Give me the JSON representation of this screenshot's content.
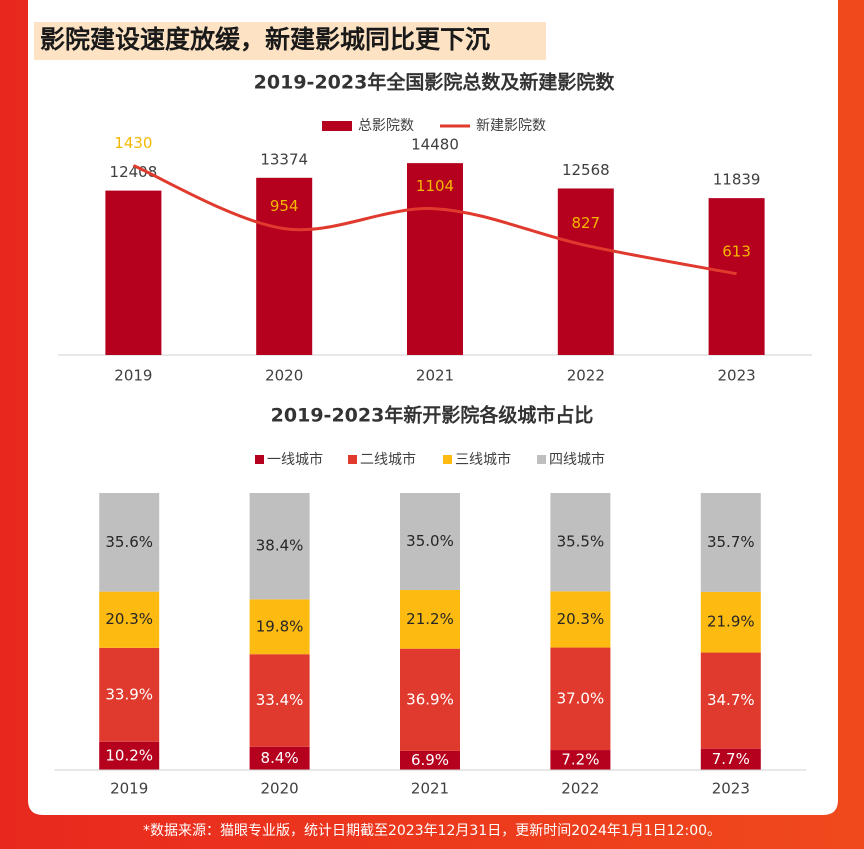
{
  "header": {
    "title": "影院建设速度放缓，新建影城同比更下沉"
  },
  "chart_data": [
    {
      "type": "combo",
      "title": "2019-2023年全国影院总数及新建影院数",
      "categories": [
        "2019",
        "2020",
        "2021",
        "2022",
        "2023"
      ],
      "series": [
        {
          "name": "总影院数",
          "type": "bar",
          "color": "#b5001e",
          "label_color": "#404040",
          "values": [
            12408,
            13374,
            14480,
            12568,
            11839
          ]
        },
        {
          "name": "新建影院数",
          "type": "line",
          "axis": "y2",
          "color": "#e03a2e",
          "label_color": "#f5b800",
          "values": [
            1430,
            954,
            1104,
            827,
            613
          ]
        }
      ],
      "ylim": [
        0,
        16000
      ],
      "y2lim": [
        0,
        1600
      ]
    },
    {
      "type": "stacked_bar",
      "title": "2019-2023年新开影院各级城市占比",
      "categories": [
        "2019",
        "2020",
        "2021",
        "2022",
        "2023"
      ],
      "series": [
        {
          "name": "一线城市",
          "color": "#b5001e",
          "label_color": "#ffffff",
          "values": [
            10.2,
            8.4,
            6.9,
            7.2,
            7.7
          ],
          "value_labels": [
            "10.2%",
            "8.4%",
            "6.9%",
            "7.2%",
            "7.7%"
          ]
        },
        {
          "name": "二线城市",
          "color": "#e03a2e",
          "label_color": "#ffffff",
          "values": [
            33.9,
            33.4,
            36.9,
            37,
            34.7
          ],
          "value_labels": [
            "33.9%",
            "33.4%",
            "36.9%",
            "37.0%",
            "34.7%"
          ]
        },
        {
          "name": "三线城市",
          "color": "#fdbb12",
          "label_color": "#262626",
          "values": [
            20.3,
            19.8,
            21.2,
            20.3,
            21.9
          ],
          "value_labels": [
            "20.3%",
            "19.8%",
            "21.2%",
            "20.3%",
            "21.9%"
          ]
        },
        {
          "name": "四线城市",
          "color": "#bfbfbf",
          "label_color": "#262626",
          "values": [
            35.6,
            38.4,
            35,
            35.5,
            35.7
          ],
          "value_labels": [
            "35.6%",
            "38.4%",
            "35.0%",
            "35.5%",
            "35.7%"
          ]
        }
      ],
      "ylim": [
        0,
        100
      ]
    }
  ],
  "footer": {
    "note": "*数据来源：猫眼专业版，统计日期截至2023年12月31日，更新时间2024年1月1日12:00。"
  }
}
